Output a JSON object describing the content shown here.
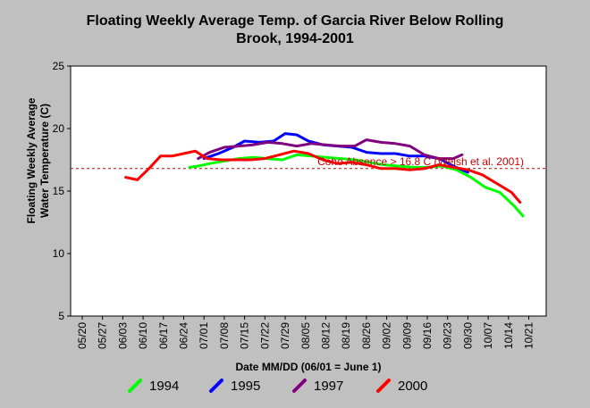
{
  "chart_data": {
    "type": "line",
    "title_line1": "Floating Weekly Average Temp. of Garcia River Below Rolling",
    "title_line2": "Brook, 1994-2001",
    "xlabel": "Date MM/DD (06/01 = June 1)",
    "ylabel_line1": "Floating Weekly Average",
    "ylabel_line2": "Water Temperature (C)",
    "x_ticks": [
      "05/20",
      "05/27",
      "06/03",
      "06/10",
      "06/17",
      "06/24",
      "07/01",
      "07/08",
      "07/15",
      "07/22",
      "07/29",
      "08/05",
      "08/12",
      "08/19",
      "08/26",
      "09/02",
      "09/09",
      "09/16",
      "09/23",
      "09/30",
      "10/07",
      "10/14",
      "10/21"
    ],
    "xlim": [
      "05/16",
      "10/27"
    ],
    "ylim": [
      5,
      25
    ],
    "y_ticks": [
      5,
      10,
      15,
      20,
      25
    ],
    "grid": false,
    "reference_line": {
      "y": 16.8,
      "color": "#cc0000",
      "label": "Coho Absence > 16.8 C (Welsh et al. 2001)"
    },
    "legend_position": "bottom",
    "series": [
      {
        "name": "1994",
        "color": "#00ff00",
        "x": [
          "06/26",
          "06/29",
          "07/03",
          "07/08",
          "07/13",
          "07/18",
          "07/23",
          "07/28",
          "08/02",
          "08/07",
          "08/12",
          "08/17",
          "08/22",
          "08/27",
          "09/01",
          "09/06",
          "09/11",
          "09/16",
          "09/21",
          "09/26",
          "10/01",
          "10/06",
          "10/11",
          "10/16",
          "10/19"
        ],
        "y": [
          16.9,
          17.0,
          17.2,
          17.4,
          17.6,
          17.7,
          17.6,
          17.5,
          17.9,
          17.8,
          17.7,
          17.6,
          17.5,
          17.3,
          17.1,
          17.0,
          16.9,
          16.9,
          17.0,
          16.7,
          16.1,
          15.3,
          14.9,
          13.8,
          13.0
        ]
      },
      {
        "name": "1995",
        "color": "#0000ff",
        "x": [
          "07/01",
          "07/06",
          "07/11",
          "07/15",
          "07/20",
          "07/25",
          "07/29",
          "08/02",
          "08/06",
          "08/11",
          "08/16",
          "08/21",
          "08/26",
          "08/31",
          "09/05",
          "09/10",
          "09/15",
          "09/20",
          "09/25",
          "09/30"
        ],
        "y": [
          17.6,
          18.0,
          18.5,
          19.0,
          18.9,
          19.0,
          19.6,
          19.5,
          19.0,
          18.7,
          18.6,
          18.5,
          18.1,
          18.0,
          18.0,
          17.8,
          17.8,
          17.6,
          17.0,
          16.5
        ]
      },
      {
        "name": "1997",
        "color": "#800080",
        "x": [
          "06/29",
          "07/03",
          "07/08",
          "07/13",
          "07/18",
          "07/23",
          "07/28",
          "08/02",
          "08/07",
          "08/12",
          "08/17",
          "08/22",
          "08/26",
          "08/31",
          "09/05",
          "09/10",
          "09/15",
          "09/20",
          "09/25",
          "09/28"
        ],
        "y": [
          17.6,
          18.1,
          18.5,
          18.6,
          18.7,
          18.9,
          18.8,
          18.6,
          18.8,
          18.7,
          18.6,
          18.6,
          19.1,
          18.9,
          18.8,
          18.6,
          17.9,
          17.6,
          17.6,
          17.9
        ]
      },
      {
        "name": "2000",
        "color": "#ff0000",
        "x": [
          "06/04",
          "06/08",
          "06/12",
          "06/16",
          "06/20",
          "06/24",
          "06/28",
          "07/02",
          "07/07",
          "07/12",
          "07/17",
          "07/22",
          "07/27",
          "08/01",
          "08/06",
          "08/11",
          "08/16",
          "08/21",
          "08/26",
          "08/31",
          "09/05",
          "09/10",
          "09/15",
          "09/20",
          "09/25",
          "09/30",
          "10/05",
          "10/10",
          "10/15",
          "10/18"
        ],
        "y": [
          16.1,
          15.9,
          16.8,
          17.8,
          17.8,
          18.0,
          18.2,
          17.6,
          17.5,
          17.5,
          17.5,
          17.6,
          17.9,
          18.2,
          18.0,
          17.5,
          17.2,
          17.3,
          17.1,
          16.8,
          16.8,
          16.7,
          16.8,
          17.1,
          16.9,
          16.7,
          16.3,
          15.6,
          14.9,
          14.1
        ]
      }
    ]
  }
}
